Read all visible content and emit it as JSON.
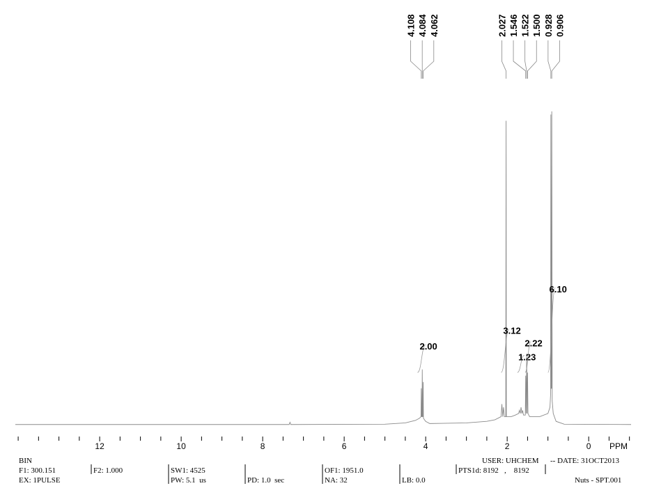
{
  "chart_data": {
    "type": "line",
    "x": [
      14.07,
      8,
      7.35,
      7.33,
      7.31,
      5,
      4.5,
      4.25,
      4.15,
      4.115,
      4.108,
      4.1,
      4.09,
      4.084,
      4.075,
      4.068,
      4.062,
      4.055,
      4.0,
      3.9,
      3.0,
      2.5,
      2.3,
      2.15,
      2.13,
      2.11,
      2.09,
      2.07,
      2.035,
      2.027,
      2.02,
      1.9,
      1.8,
      1.72,
      1.7,
      1.68,
      1.66,
      1.64,
      1.62,
      1.6,
      1.555,
      1.546,
      1.535,
      1.522,
      1.51,
      1.5,
      1.49,
      1.45,
      1.2,
      1.0,
      0.95,
      0.935,
      0.928,
      0.918,
      0.912,
      0.906,
      0.895,
      0.87,
      0.8,
      0.6,
      -1.04
    ],
    "series": [
      {
        "color": "#8a8a8a",
        "values": [
          0.5,
          0.5,
          0.5,
          1.2,
          0.5,
          0.6,
          1,
          1.8,
          2.5,
          3,
          12,
          3,
          3,
          18,
          3,
          3,
          14,
          2.5,
          1.5,
          0.8,
          1,
          1.5,
          2,
          3,
          7,
          3,
          6,
          3,
          3,
          97,
          3,
          3,
          3.5,
          4,
          5,
          4,
          6,
          4,
          5,
          3.5,
          3.5,
          16,
          4,
          23,
          4,
          17,
          4,
          3,
          3,
          4,
          6,
          10,
          99,
          12,
          12,
          100,
          8,
          4,
          1.5,
          0.6,
          0.5
        ]
      }
    ],
    "xlim": [
      14.07,
      -1.04
    ],
    "ylim": [
      0,
      100
    ],
    "xticks": [
      12,
      10,
      8,
      6,
      4,
      2,
      0
    ],
    "xminor": [
      14,
      13.5,
      13,
      12.5,
      11.5,
      11,
      10.5,
      9.5,
      9,
      8.5,
      7.5,
      7,
      6.5,
      5.5,
      5,
      4.5,
      3.5,
      3,
      2.5,
      1.5,
      1,
      0.5,
      -0.5,
      -1
    ],
    "xlabel": "PPM",
    "peak_labels": {
      "values": [
        4.108,
        4.084,
        4.062,
        2.027,
        1.546,
        1.522,
        1.5,
        0.928,
        0.906
      ],
      "value_labels": [
        "4.108",
        "4.084",
        "4.062",
        "2.027",
        "1.546",
        "1.522",
        "1.500",
        "0.928",
        "0.906"
      ]
    },
    "integrals": {
      "ranges": [
        [
          4.2,
          4.0
        ],
        [
          2.15,
          1.95
        ],
        [
          1.75,
          1.58
        ],
        [
          1.56,
          1.42
        ],
        [
          1.0,
          0.82
        ]
      ],
      "values": [
        2,
        3.12,
        1.23,
        2.22,
        6.1
      ],
      "value_labels": [
        "2.00",
        "3.12",
        "1.23",
        "2.22",
        "6.10"
      ]
    },
    "footer": [
      "BIN",
      "F1: 300.151",
      "EX: 1PULSE",
      "F2: 1.000",
      "SW1: 4525",
      "PW: 5.1  us",
      "PD: 1.0  sec",
      "OF1: 1951.0",
      "NA: 32",
      "LB: 0.0",
      "PTS1d: 8192   ,    8192",
      "USER: UHCHEM",
      "-- DATE: 31OCT2013",
      "Nuts - SPT.001"
    ]
  }
}
